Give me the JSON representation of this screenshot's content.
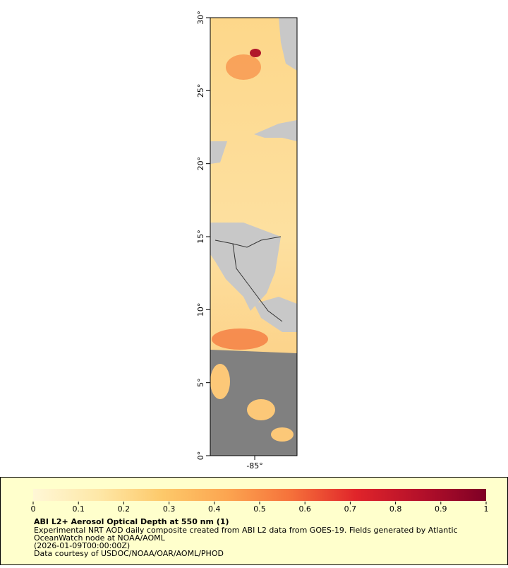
{
  "map": {
    "xlim": [
      -88.05,
      -82.1
    ],
    "ylim": [
      0,
      30
    ],
    "yticks": [
      {
        "value": 0,
        "label": "0°"
      },
      {
        "value": 5,
        "label": "5°"
      },
      {
        "value": 10,
        "label": "10°"
      },
      {
        "value": 15,
        "label": "15°"
      },
      {
        "value": 20,
        "label": "20°"
      },
      {
        "value": 25,
        "label": "25°"
      },
      {
        "value": 30,
        "label": "30°"
      }
    ],
    "xticks": [
      {
        "value": -85,
        "label": "-85°"
      }
    ]
  },
  "colorbar": {
    "range": [
      0,
      1
    ],
    "ticks": [
      0,
      0.1,
      0.2,
      0.3,
      0.4,
      0.5,
      0.6,
      0.7,
      0.8,
      0.9,
      1
    ],
    "colors": [
      "#fff7d6",
      "#fee8a8",
      "#fdc96a",
      "#fca550",
      "#f5703a",
      "#e0242a",
      "#b4102a",
      "#7f0025"
    ]
  },
  "legend": {
    "title": "ABI L2+ Aerosol Optical Depth at 550 nm (1)",
    "lines": [
      "Experimental NRT AOD daily composite created from ABI L2 data from GOES-19. Fields generated by Atlantic",
      "OceanWatch node at NOAA/AOML",
      "(2026-01-09T00:00:00Z)",
      "Data courtesy of USDOC/NOAA/OAR/AOML/PHOD"
    ]
  }
}
